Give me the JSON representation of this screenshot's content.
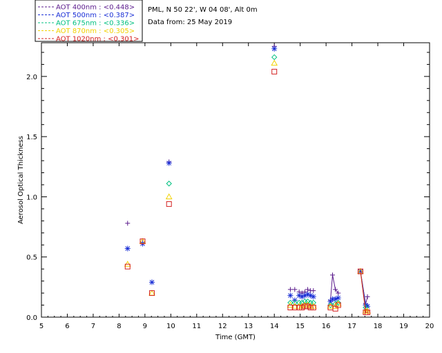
{
  "chart_data": {
    "type": "scatter",
    "title": "PML, N 50 22', W 04 08', Alt 0m",
    "subtitle": "Data from: 25 May 2019",
    "xlabel": "Time (GMT)",
    "ylabel": "Aerosol Optical Thickness",
    "xlim": [
      5,
      20
    ],
    "ylim": [
      0,
      2.28
    ],
    "xticks": [
      5,
      6,
      7,
      8,
      9,
      10,
      11,
      12,
      13,
      14,
      15,
      16,
      17,
      18,
      19,
      20
    ],
    "yticks": [
      "0.0",
      "0.5",
      "1.0",
      "1.5",
      "2.0"
    ],
    "grid": false,
    "legend_position": "top-left-outside",
    "series": [
      {
        "name": "AOT  400nm : <0.448>",
        "color": "#5a1a8c",
        "marker": "plus",
        "points": [
          [
            8.33,
            0.78
          ],
          [
            8.91,
            0.62
          ],
          [
            9.93,
            1.29
          ],
          [
            14.0,
            2.25
          ],
          [
            14.62,
            0.23
          ],
          [
            14.79,
            0.23
          ],
          [
            14.96,
            0.21
          ],
          [
            15.07,
            0.2
          ],
          [
            15.18,
            0.21
          ],
          [
            15.29,
            0.23
          ],
          [
            15.4,
            0.22
          ],
          [
            15.51,
            0.22
          ],
          [
            16.17,
            0.14
          ],
          [
            16.25,
            0.35
          ],
          [
            16.36,
            0.23
          ],
          [
            16.47,
            0.2
          ],
          [
            17.33,
            0.38
          ],
          [
            17.53,
            0.11
          ],
          [
            17.6,
            0.17
          ]
        ],
        "line_segments": [
          [
            [
              16.17,
              0.14
            ],
            [
              16.25,
              0.35
            ],
            [
              16.36,
              0.23
            ],
            [
              16.47,
              0.2
            ]
          ],
          [
            [
              17.33,
              0.38
            ],
            [
              17.53,
              0.11
            ],
            [
              17.6,
              0.17
            ]
          ]
        ]
      },
      {
        "name": "AOT  500nm : <0.387>",
        "color": "#1a2fd6",
        "marker": "asterisk",
        "points": [
          [
            8.33,
            0.57
          ],
          [
            8.91,
            0.61
          ],
          [
            9.27,
            0.29
          ],
          [
            9.93,
            1.28
          ],
          [
            14.0,
            2.23
          ],
          [
            14.62,
            0.18
          ],
          [
            14.79,
            0.14
          ],
          [
            14.96,
            0.18
          ],
          [
            15.07,
            0.17
          ],
          [
            15.18,
            0.18
          ],
          [
            15.29,
            0.19
          ],
          [
            15.4,
            0.18
          ],
          [
            15.51,
            0.17
          ],
          [
            16.17,
            0.13
          ],
          [
            16.25,
            0.15
          ],
          [
            16.36,
            0.15
          ],
          [
            16.47,
            0.16
          ],
          [
            17.33,
            0.38
          ],
          [
            17.53,
            0.1
          ],
          [
            17.6,
            0.09
          ]
        ],
        "line_segments": [
          [
            [
              16.17,
              0.13
            ],
            [
              16.25,
              0.15
            ],
            [
              16.36,
              0.15
            ],
            [
              16.47,
              0.16
            ]
          ],
          [
            [
              17.33,
              0.38
            ],
            [
              17.53,
              0.1
            ],
            [
              17.6,
              0.09
            ]
          ]
        ]
      },
      {
        "name": "AOT  675nm : <0.336>",
        "color": "#00c080",
        "marker": "diamond",
        "points": [
          [
            9.93,
            1.11
          ],
          [
            14.0,
            2.16
          ],
          [
            14.62,
            0.12
          ],
          [
            14.79,
            0.12
          ],
          [
            14.96,
            0.12
          ],
          [
            15.07,
            0.12
          ],
          [
            15.18,
            0.13
          ],
          [
            15.29,
            0.13
          ],
          [
            15.4,
            0.12
          ],
          [
            15.51,
            0.12
          ],
          [
            16.17,
            0.1
          ],
          [
            16.36,
            0.11
          ],
          [
            16.47,
            0.12
          ],
          [
            17.53,
            0.08
          ]
        ],
        "line_segments": []
      },
      {
        "name": "AOT  870nm : <0.305>",
        "color": "#f2d200",
        "marker": "triangle",
        "points": [
          [
            8.33,
            0.44
          ],
          [
            8.91,
            0.63
          ],
          [
            9.27,
            0.2
          ],
          [
            9.93,
            1.0
          ],
          [
            14.0,
            2.11
          ],
          [
            14.62,
            0.1
          ],
          [
            14.79,
            0.09
          ],
          [
            14.96,
            0.09
          ],
          [
            15.07,
            0.09
          ],
          [
            15.18,
            0.1
          ],
          [
            15.29,
            0.1
          ],
          [
            15.4,
            0.09
          ],
          [
            15.51,
            0.09
          ],
          [
            16.17,
            0.09
          ],
          [
            16.36,
            0.09
          ],
          [
            16.47,
            0.11
          ],
          [
            17.33,
            0.38
          ],
          [
            17.53,
            0.05
          ],
          [
            17.6,
            0.05
          ]
        ],
        "line_segments": [
          [
            [
              17.33,
              0.38
            ],
            [
              17.53,
              0.05
            ],
            [
              17.6,
              0.05
            ]
          ]
        ]
      },
      {
        "name": "AOT 1020nm : <0.301>",
        "color": "#d42020",
        "marker": "square",
        "points": [
          [
            8.33,
            0.42
          ],
          [
            8.91,
            0.63
          ],
          [
            9.27,
            0.2
          ],
          [
            9.93,
            0.94
          ],
          [
            14.0,
            2.04
          ],
          [
            14.62,
            0.08
          ],
          [
            14.79,
            0.08
          ],
          [
            14.96,
            0.08
          ],
          [
            15.07,
            0.08
          ],
          [
            15.18,
            0.09
          ],
          [
            15.29,
            0.09
          ],
          [
            15.4,
            0.08
          ],
          [
            15.51,
            0.08
          ],
          [
            16.17,
            0.08
          ],
          [
            16.36,
            0.07
          ],
          [
            16.47,
            0.1
          ],
          [
            17.33,
            0.38
          ],
          [
            17.53,
            0.04
          ],
          [
            17.6,
            0.04
          ]
        ],
        "line_segments": [
          [
            [
              17.33,
              0.38
            ],
            [
              17.53,
              0.04
            ],
            [
              17.6,
              0.04
            ]
          ]
        ]
      }
    ]
  }
}
